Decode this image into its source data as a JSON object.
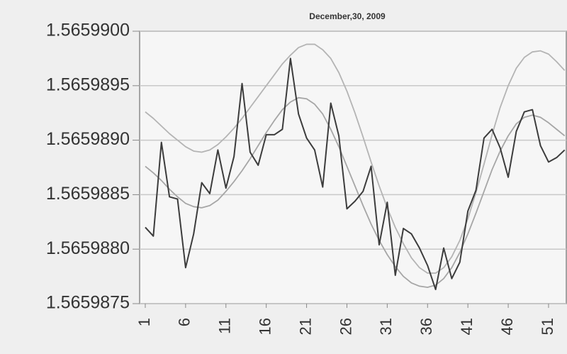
{
  "chart_data": {
    "type": "line",
    "title": "December,30, 2009",
    "x": [
      1,
      2,
      3,
      4,
      5,
      6,
      7,
      8,
      9,
      10,
      11,
      12,
      13,
      14,
      15,
      16,
      17,
      18,
      19,
      20,
      21,
      22,
      23,
      24,
      25,
      26,
      27,
      28,
      29,
      30,
      31,
      32,
      33,
      34,
      35,
      36,
      37,
      38,
      39,
      40,
      41,
      42,
      43,
      44,
      45,
      46,
      47,
      48,
      49,
      50,
      51,
      52,
      53
    ],
    "xlim": [
      0.3,
      53.2
    ],
    "xticks": [
      1,
      6,
      11,
      16,
      21,
      26,
      31,
      36,
      41,
      46,
      51
    ],
    "ylim": [
      1.5659875,
      1.56599
    ],
    "yticks": [
      1.5659875,
      {
        "value": 1.565988,
        "label": "1.5659880"
      },
      1.5659885,
      {
        "value": 1.565989,
        "label": "1.5659890"
      },
      1.5659895,
      {
        "value": 1.56599,
        "label": "1.5659900"
      }
    ],
    "grid": true,
    "series": [
      {
        "color": "#b4b4b4",
        "values": [
          1.56598926,
          1.5659892,
          1.56598913,
          1.56598906,
          1.565989,
          1.56598894,
          1.5659889,
          1.56598889,
          1.56598891,
          1.56598896,
          1.56598903,
          1.56598911,
          1.5659892,
          1.5659893,
          1.5659894,
          1.5659895,
          1.5659896,
          1.5659897,
          1.56598978,
          1.56598985,
          1.56598988,
          1.56598988,
          1.56598983,
          1.56598975,
          1.56598962,
          1.56598945,
          1.56598925,
          1.56598903,
          1.5659888,
          1.56598858,
          1.56598838,
          1.5659882,
          1.56598805,
          1.56598792,
          1.56598783,
          1.56598778,
          1.56598778,
          1.56598783,
          1.56598793,
          1.56598808,
          1.56598828,
          1.56598852,
          1.56598878,
          1.56598905,
          1.5659893,
          1.5659895,
          1.56598966,
          1.56598976,
          1.56598981,
          1.56598982,
          1.56598979,
          1.56598972,
          1.56598964
        ]
      },
      {
        "color": "#a6a6a6",
        "values": [
          1.56598876,
          1.5659887,
          1.56598863,
          1.56598855,
          1.56598848,
          1.56598842,
          1.56598839,
          1.56598838,
          1.5659884,
          1.56598845,
          1.56598853,
          1.56598862,
          1.56598872,
          1.56598883,
          1.56598895,
          1.56598907,
          1.56598918,
          1.56598928,
          1.56598935,
          1.56598939,
          1.56598938,
          1.56598933,
          1.56598924,
          1.5659891,
          1.56598894,
          1.56598876,
          1.56598858,
          1.5659884,
          1.56598823,
          1.56598808,
          1.56598795,
          1.56598784,
          1.56598775,
          1.56598769,
          1.56598766,
          1.56598765,
          1.56598767,
          1.56598773,
          1.56598783,
          1.56598797,
          1.56598814,
          1.56598833,
          1.56598853,
          1.56598873,
          1.5659889,
          1.56598904,
          1.56598915,
          1.56598921,
          1.56598923,
          1.56598921,
          1.56598916,
          1.5659891,
          1.56598904
        ]
      },
      {
        "color": "#3c3c3c",
        "values": [
          1.5659882,
          1.56598812,
          1.56598898,
          1.56598848,
          1.56598846,
          1.56598783,
          1.56598814,
          1.56598861,
          1.56598851,
          1.56598891,
          1.56598856,
          1.56598885,
          1.56598952,
          1.56598889,
          1.56598877,
          1.56598905,
          1.56598905,
          1.5659891,
          1.56598975,
          1.56598924,
          1.56598902,
          1.56598891,
          1.56598857,
          1.56598934,
          1.56598904,
          1.56598837,
          1.56598844,
          1.56598853,
          1.56598876,
          1.56598804,
          1.56598843,
          1.56598776,
          1.56598819,
          1.56598814,
          1.56598801,
          1.56598785,
          1.56598763,
          1.56598801,
          1.56598773,
          1.56598788,
          1.56598835,
          1.56598854,
          1.56598902,
          1.5659891,
          1.56598893,
          1.56598866,
          1.56598908,
          1.56598926,
          1.56598928,
          1.56598895,
          1.5659888,
          1.56598884,
          1.56598891
        ]
      }
    ]
  }
}
